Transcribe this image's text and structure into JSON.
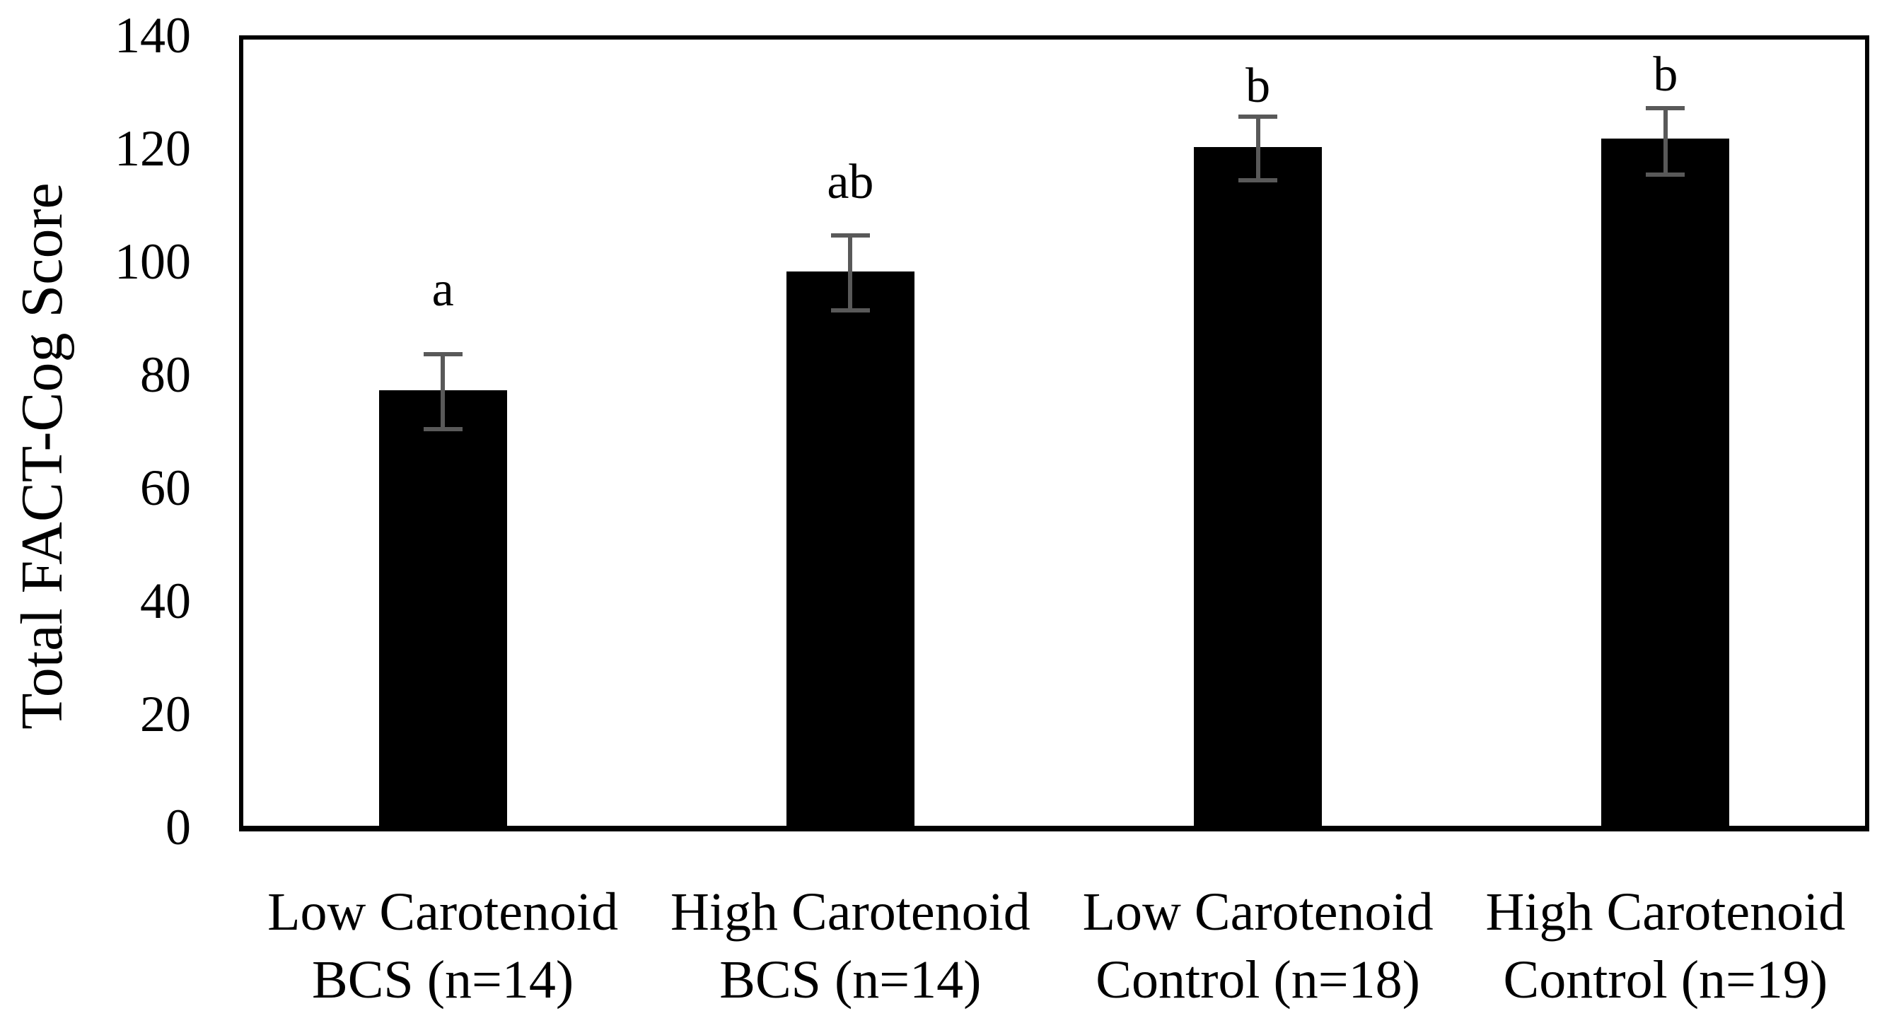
{
  "chart_data": {
    "type": "bar",
    "title": "",
    "xlabel": "",
    "ylabel": "Total FACT-Cog Score",
    "ylim": [
      0,
      140
    ],
    "yticks": [
      0,
      20,
      40,
      60,
      80,
      100,
      120,
      140
    ],
    "grid": false,
    "legend_position": "none",
    "bar_color": "#000000",
    "error_bar_color": "#595959",
    "frame_color": "#000000",
    "background_color": "#ffffff",
    "categories": [
      "Low Carotenoid BCS (n=14)",
      "High Carotenoid BCS (n=14)",
      "Low Carotenoid Control (n=18)",
      "High Carotenoid Control (n=19)"
    ],
    "bars": [
      {
        "label_lines": [
          "Low Carotenoid",
          "BCS (n=14)"
        ],
        "value": 77,
        "error_low": 70,
        "error_high": 84,
        "sig_letter": "a",
        "sig_letter_y": 95
      },
      {
        "label_lines": [
          "High Carotenoid",
          "BCS (n=14)"
        ],
        "value": 98,
        "error_low": 91,
        "error_high": 105,
        "sig_letter": "ab",
        "sig_letter_y": 114
      },
      {
        "label_lines": [
          "Low Carotenoid",
          "Control (n=18)"
        ],
        "value": 120,
        "error_low": 114,
        "error_high": 126,
        "sig_letter": "b",
        "sig_letter_y": 131
      },
      {
        "label_lines": [
          "High Carotenoid",
          "Control (n=19)"
        ],
        "value": 121.5,
        "error_low": 115,
        "error_high": 127.5,
        "sig_letter": "b",
        "sig_letter_y": 133
      }
    ]
  }
}
